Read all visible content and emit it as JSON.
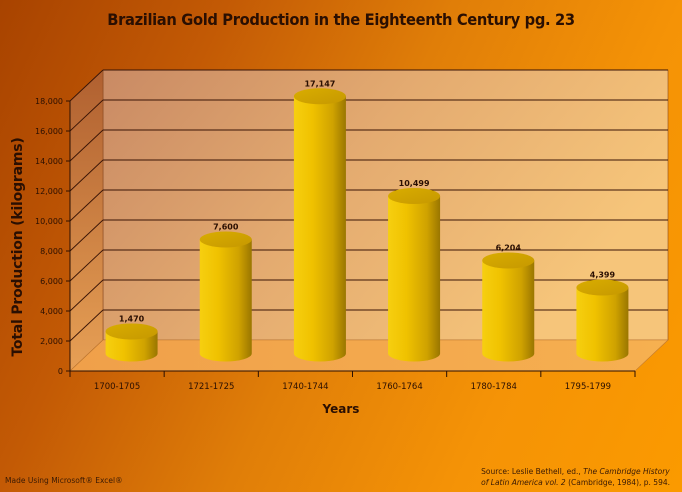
{
  "chart_data": {
    "type": "bar",
    "style": "3d-cylinder",
    "title": "Brazilian Gold Production in the Eighteenth Century pg. 23",
    "xlabel": "Years",
    "ylabel": "Total Production (kilograms)",
    "categories": [
      "1700-1705",
      "1721-1725",
      "1740-1744",
      "1760-1764",
      "1780-1784",
      "1795-1799"
    ],
    "values": [
      1470,
      7600,
      17147,
      10499,
      6204,
      4399
    ],
    "data_labels": [
      "1,470",
      "7,600",
      "17,147",
      "10,499",
      "6,204",
      "4,399"
    ],
    "ylim": [
      0,
      18000
    ],
    "yticks": [
      0,
      2000,
      4000,
      6000,
      8000,
      10000,
      12000,
      14000,
      16000,
      18000
    ],
    "ytick_labels": [
      "0",
      "2,000",
      "4,000",
      "6,000",
      "8,000",
      "10,000",
      "12,000",
      "14,000",
      "16,000",
      "18,000"
    ],
    "grid": true,
    "legend": "none",
    "colors": {
      "bar": "#f2c200",
      "bar_dark": "#b08a00",
      "wall": "#e8b06a",
      "floor": "#f2a63c",
      "gridline": "#3a1405"
    }
  },
  "footer": {
    "made_with": "Made Using Microsoft® Excel®",
    "source_prefix": "Source: Leslie Bethell, ed., ",
    "source_title1": "The Cambridge History",
    "source_title2": "of Latin America vol. 2",
    "source_suffix": " (Cambridge, 1984), p. 594."
  }
}
